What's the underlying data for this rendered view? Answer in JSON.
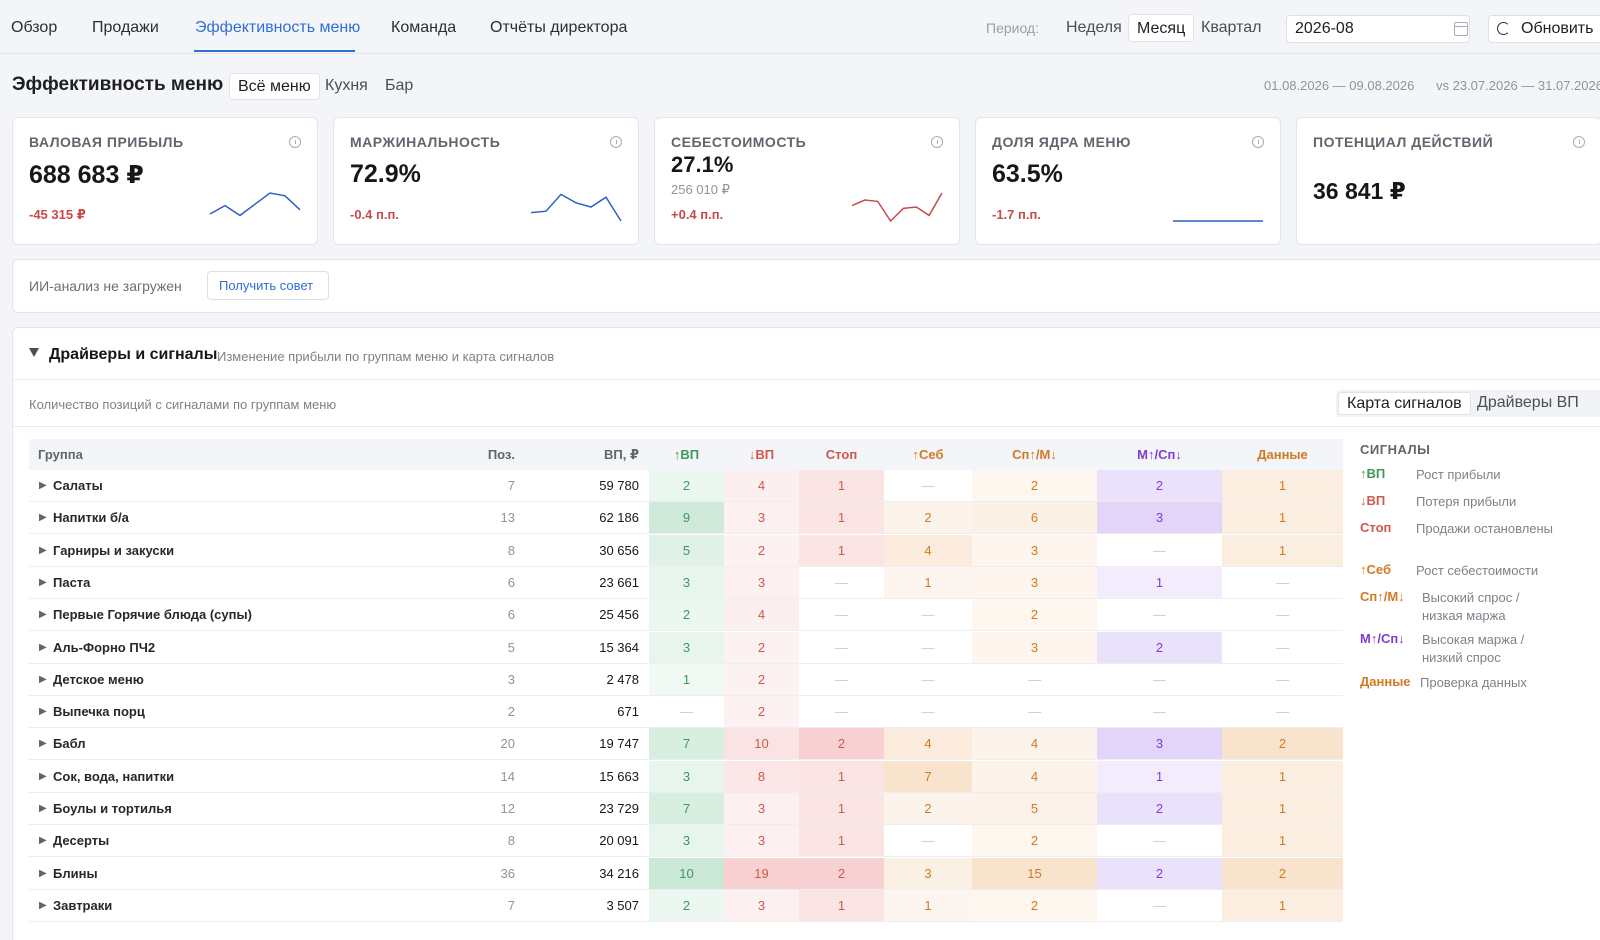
{
  "nav": {
    "tabs": [
      "Обзор",
      "Продажи",
      "Эффективность меню",
      "Команда",
      "Отчёты директора"
    ],
    "active": 2,
    "period_label": "Период:",
    "periods": [
      "Неделя",
      "Месяц",
      "Квартал"
    ],
    "active_period": 1,
    "date_value": "2026-08",
    "refresh_label": "Обновить"
  },
  "header": {
    "title": "Эффективность меню",
    "scopes": [
      "Всё меню",
      "Кухня",
      "Бар"
    ],
    "active_scope": 0,
    "range": "01.08.2026 — 09.08.2026",
    "compare": "vs 23.07.2026 — 31.07.2026"
  },
  "kpis": [
    {
      "title": "ВАЛОВАЯ ПРИБЫЛЬ",
      "value": "688 683 ₽",
      "delta": "-45 315 ₽",
      "spark_color": "#2f5fc4",
      "spark": [
        0.25,
        0.55,
        0.2,
        0.6,
        1.0,
        0.9,
        0.4
      ]
    },
    {
      "title": "МАРЖИНАЛЬНОСТЬ",
      "value": "72.9%",
      "delta": "-0.4 п.п.",
      "spark_color": "#2f5fc4",
      "spark": [
        0.3,
        0.35,
        0.95,
        0.65,
        0.5,
        0.85,
        0.0
      ]
    },
    {
      "title": "СЕБЕСТОИМОСТЬ",
      "value": "27.1%",
      "sub": "256 010 ₽",
      "delta": "+0.4 п.п.",
      "spark_color": "#c94a4a",
      "spark": [
        0.55,
        0.75,
        0.7,
        0.0,
        0.45,
        0.5,
        0.2,
        1.0
      ]
    },
    {
      "title": "ДОЛЯ ЯДРА МЕНЮ",
      "value": "63.5%",
      "delta": "-1.7 п.п.",
      "spark_color": "#2f5fc4",
      "spark": [
        0,
        0,
        0,
        0,
        0,
        0
      ]
    },
    {
      "title": "ПОТЕНЦИАЛ ДЕЙСТВИЙ",
      "value": "36 841 ₽"
    }
  ],
  "ai": {
    "status": "ИИ-анализ не загружен",
    "button": "Получить совет"
  },
  "drivers": {
    "title": "Драйверы и сигналы",
    "description": "Изменение прибыли по группам меню и карта сигналов",
    "subtitle": "Количество позиций с сигналами по группам меню",
    "views": [
      "Карта сигналов",
      "Драйверы ВП"
    ],
    "active_view": 0,
    "columns": {
      "group": "Группа",
      "poz": "Поз.",
      "vp": "ВП, ₽",
      "signals": [
        "↑ВП",
        "↓ВП",
        "Стоп",
        "↑Себ",
        "Сп↑/М↓",
        "М↑/Сп↓",
        "Данные"
      ]
    },
    "rows": [
      {
        "name": "Салаты",
        "poz": "7",
        "vp": "59 780",
        "s": [
          2,
          4,
          1,
          0,
          2,
          2,
          1
        ]
      },
      {
        "name": "Напитки б/а",
        "poz": "13",
        "vp": "62 186",
        "s": [
          9,
          3,
          1,
          2,
          6,
          3,
          1
        ]
      },
      {
        "name": "Гарниры и закуски",
        "poz": "8",
        "vp": "30 656",
        "s": [
          5,
          2,
          1,
          4,
          3,
          0,
          1
        ]
      },
      {
        "name": "Паста",
        "poz": "6",
        "vp": "23 661",
        "s": [
          3,
          3,
          0,
          1,
          3,
          1,
          0
        ]
      },
      {
        "name": "Первые Горячие блюда (супы)",
        "poz": "6",
        "vp": "25 456",
        "s": [
          2,
          4,
          0,
          0,
          2,
          0,
          0
        ]
      },
      {
        "name": "Аль-Форно ПЧ2",
        "poz": "5",
        "vp": "15 364",
        "s": [
          3,
          2,
          0,
          0,
          3,
          2,
          0
        ]
      },
      {
        "name": "Детское меню",
        "poz": "3",
        "vp": "2 478",
        "s": [
          1,
          2,
          0,
          0,
          0,
          0,
          0
        ]
      },
      {
        "name": "Выпечка порц",
        "poz": "2",
        "vp": "671",
        "s": [
          0,
          2,
          0,
          0,
          0,
          0,
          0
        ]
      },
      {
        "name": "Бабл",
        "poz": "20",
        "vp": "19 747",
        "s": [
          7,
          10,
          2,
          4,
          4,
          3,
          2
        ]
      },
      {
        "name": "Сок, вода, напитки",
        "poz": "14",
        "vp": "15 663",
        "s": [
          3,
          8,
          1,
          7,
          4,
          1,
          1
        ]
      },
      {
        "name": "Боулы и тортилья",
        "poz": "12",
        "vp": "23 729",
        "s": [
          7,
          3,
          1,
          2,
          5,
          2,
          1
        ]
      },
      {
        "name": "Десерты",
        "poz": "8",
        "vp": "20 091",
        "s": [
          3,
          3,
          1,
          0,
          2,
          0,
          1
        ]
      },
      {
        "name": "Блины",
        "poz": "36",
        "vp": "34 216",
        "s": [
          10,
          19,
          2,
          3,
          15,
          2,
          2
        ]
      },
      {
        "name": "Завтраки",
        "poz": "7",
        "vp": "3 507",
        "s": [
          2,
          3,
          1,
          1,
          2,
          0,
          1
        ]
      }
    ],
    "empty_mark": "—"
  },
  "legend": {
    "title": "СИГНАЛЫ",
    "items": [
      {
        "code": "↑ВП",
        "text": "Рост прибыли"
      },
      {
        "code": "↓ВП",
        "text": "Потеря прибыли"
      },
      {
        "code": "Стоп",
        "text": "Продажи остановлены"
      },
      {
        "code": "↑Себ",
        "text": "Рост себестоимости"
      },
      {
        "code": "Сп↑/М↓",
        "text": "Высокий спрос / низкая маржа"
      },
      {
        "code": "М↑/Сп↓",
        "text": "Высокая маржа / низкий спрос"
      },
      {
        "code": "Данные",
        "text": "Проверка данных"
      }
    ]
  },
  "colors": {
    "accent": "#2f6fd6",
    "sig_text": [
      "#3d9a5c",
      "#d0584f",
      "#d0584f",
      "#d27a22",
      "#d27a22",
      "#7c3fd0",
      "#d27a22"
    ],
    "sig_rgb": [
      "61,170,104",
      "224,84,84",
      "224,84,84",
      "230,150,70",
      "230,150,70",
      "150,100,230",
      "230,150,70"
    ]
  }
}
